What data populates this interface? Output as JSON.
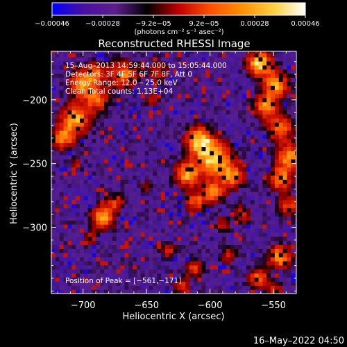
{
  "chart_data": {
    "type": "heatmap",
    "title": "Reconstructed RHESSI Image",
    "xlabel": "Heliocentric X (arcsec)",
    "ylabel": "Heliocentric Y (arcsec)",
    "xlim": [
      -725,
      -532
    ],
    "ylim": [
      -352,
      -162
    ],
    "x_ticks": [
      -700,
      -650,
      -600,
      -550
    ],
    "x_tick_labels": [
      "−700",
      "−650",
      "−600",
      "−550"
    ],
    "y_ticks": [
      -200,
      -250,
      -300
    ],
    "y_tick_labels": [
      "−200",
      "−250",
      "−300"
    ],
    "colorbar": {
      "range": [
        -0.00046,
        0.00046
      ],
      "tick_labels": [
        "−0.00046",
        "−0.00028",
        "−9.2e−05",
        "9.2e−05",
        "0.00028",
        "0.00046"
      ],
      "units": "(photons cm⁻² s⁻¹ asec⁻²)",
      "stops": [
        "#0000ff",
        "#4a10a0",
        "#5b1f8c",
        "#000000",
        "#c00000",
        "#ff5000",
        "#ff9000",
        "#ffd040",
        "#ffffff"
      ]
    },
    "annotations": [
      "15–Aug–2013 14:59:44.000 to 15:05:44.000",
      "Detectors: 3F 4F 5F 6F 7F 8F, Att 0",
      "Energy Range: 12.0 – 25.0 keV",
      "Clean    Total counts: 1.13E+04"
    ],
    "peak_label": "Position of Peak = [−561,−171]",
    "peak": [
      -561,
      -171
    ],
    "grid": false,
    "bright_regions": [
      {
        "x": -716,
        "y": -230,
        "r": 9,
        "level": 0.7
      },
      {
        "x": -706,
        "y": -215,
        "r": 12,
        "level": 0.85
      },
      {
        "x": -700,
        "y": -188,
        "r": 11,
        "level": 0.8
      },
      {
        "x": -688,
        "y": -200,
        "r": 9,
        "level": 0.6
      },
      {
        "x": -668,
        "y": -180,
        "r": 11,
        "level": 0.75
      },
      {
        "x": -690,
        "y": -178,
        "r": 8,
        "level": 0.55
      },
      {
        "x": -640,
        "y": -178,
        "r": 8,
        "level": 0.5
      },
      {
        "x": -608,
        "y": -232,
        "r": 11,
        "level": 0.95
      },
      {
        "x": -596,
        "y": -246,
        "r": 13,
        "level": 1.0
      },
      {
        "x": -618,
        "y": -258,
        "r": 10,
        "level": 0.85
      },
      {
        "x": -582,
        "y": -260,
        "r": 9,
        "level": 0.75
      },
      {
        "x": -598,
        "y": -272,
        "r": 9,
        "level": 0.8
      },
      {
        "x": -612,
        "y": -280,
        "r": 8,
        "level": 0.6
      },
      {
        "x": -575,
        "y": -290,
        "r": 7,
        "level": 0.5
      },
      {
        "x": -590,
        "y": -298,
        "r": 6,
        "level": 0.45
      },
      {
        "x": -684,
        "y": -292,
        "r": 9,
        "level": 0.9
      },
      {
        "x": -674,
        "y": -280,
        "r": 6,
        "level": 0.55
      },
      {
        "x": -694,
        "y": -308,
        "r": 5,
        "level": 0.45
      },
      {
        "x": -561,
        "y": -171,
        "r": 10,
        "level": 1.0
      },
      {
        "x": -548,
        "y": -188,
        "r": 10,
        "level": 0.85
      },
      {
        "x": -556,
        "y": -205,
        "r": 9,
        "level": 0.8
      },
      {
        "x": -545,
        "y": -222,
        "r": 10,
        "level": 0.75
      },
      {
        "x": -537,
        "y": -245,
        "r": 10,
        "level": 0.85
      },
      {
        "x": -545,
        "y": -262,
        "r": 9,
        "level": 0.8
      },
      {
        "x": -538,
        "y": -283,
        "r": 8,
        "level": 0.6
      },
      {
        "x": -545,
        "y": -323,
        "r": 9,
        "level": 0.85
      },
      {
        "x": -562,
        "y": -340,
        "r": 8,
        "level": 0.7
      },
      {
        "x": -585,
        "y": -322,
        "r": 6,
        "level": 0.5
      },
      {
        "x": -612,
        "y": -332,
        "r": 7,
        "level": 0.55
      },
      {
        "x": -632,
        "y": -318,
        "r": 6,
        "level": 0.45
      },
      {
        "x": -622,
        "y": -346,
        "r": 6,
        "level": 0.5
      },
      {
        "x": -548,
        "y": -350,
        "r": 6,
        "level": 0.55
      },
      {
        "x": -645,
        "y": -200,
        "r": 6,
        "level": 0.4
      },
      {
        "x": -650,
        "y": -268,
        "r": 5,
        "level": 0.35
      },
      {
        "x": -705,
        "y": -250,
        "r": 5,
        "level": 0.35
      }
    ]
  },
  "footer": {
    "date_stamp": "16–May–2022 04:50"
  }
}
